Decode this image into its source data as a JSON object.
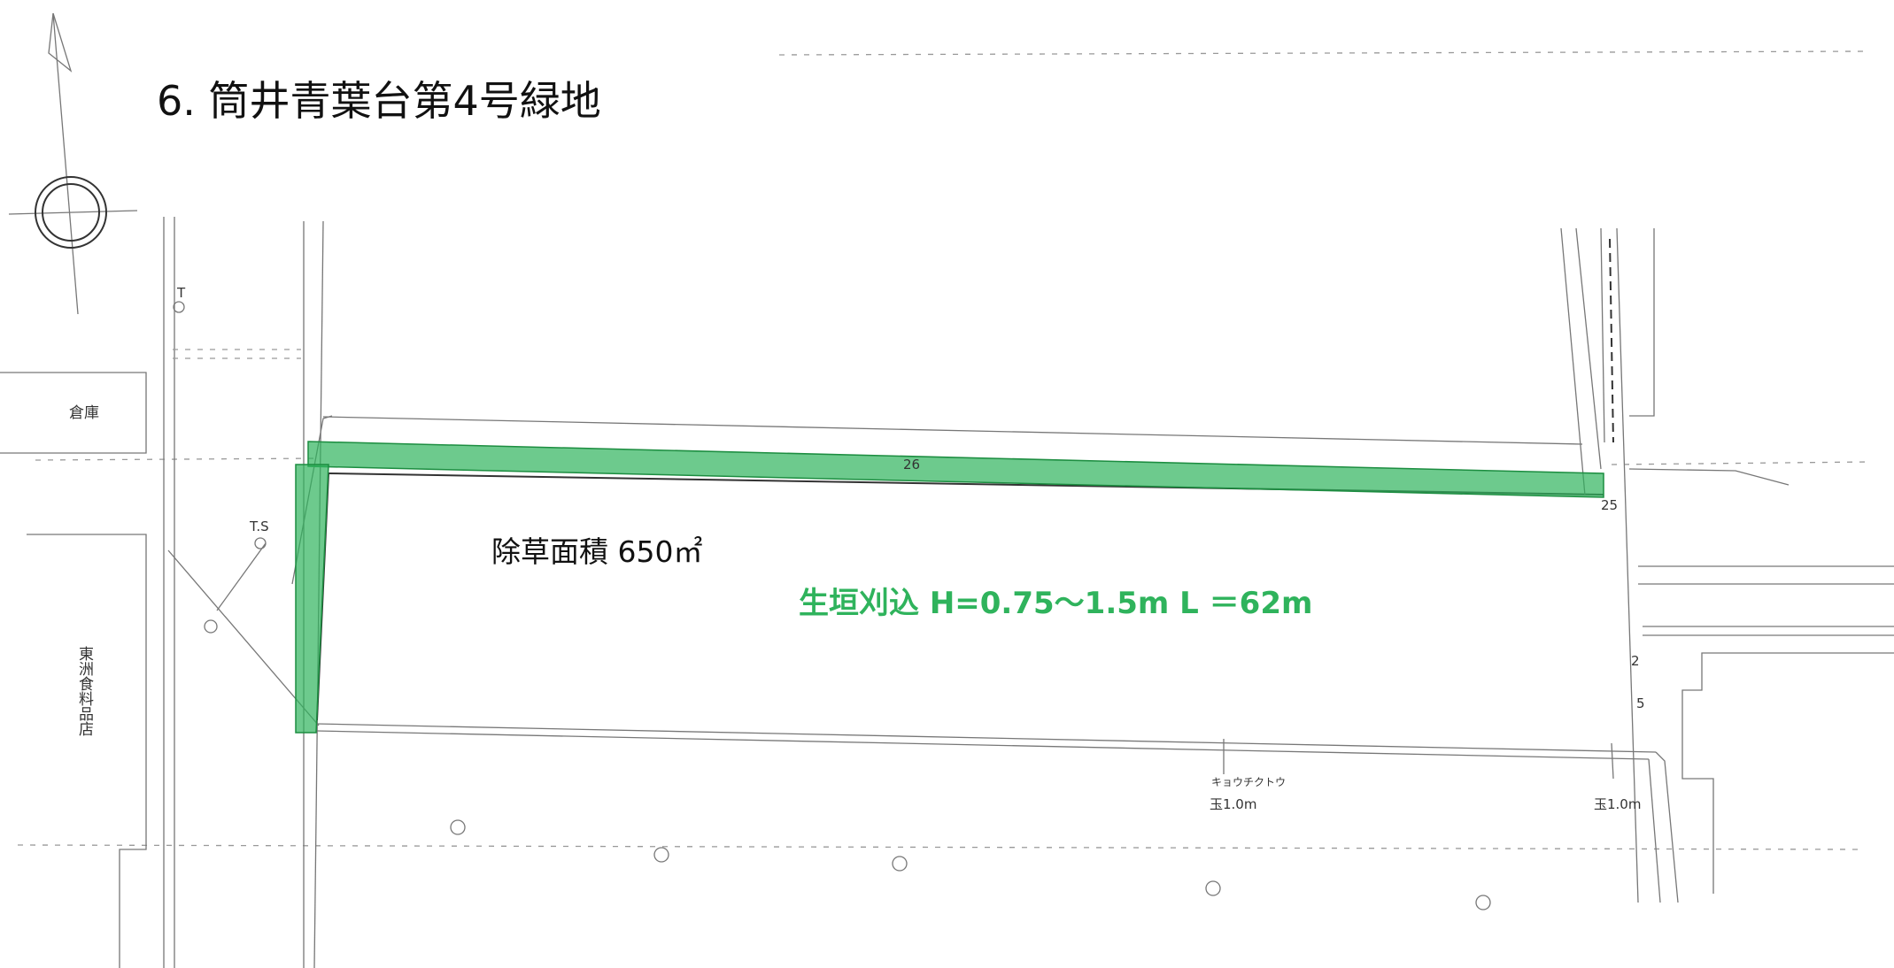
{
  "title": "6. 筒井青葉台第4号緑地",
  "labels": {
    "warehouse": "倉庫",
    "shop": "東洲食料品店",
    "weeding_area": "除草面積 650㎡",
    "hedge": "生垣刈込 H=0.75～1.5m L ＝62m",
    "dim_top": "26",
    "dim_right": "25",
    "dim_side_a": "2",
    "dim_side_b": "5",
    "tree_name": "キョウチクトウ",
    "tree_size_1": "玉1.0m",
    "tree_size_2": "玉1.0m",
    "pole_t": "T",
    "pole_ts": "T.S"
  }
}
